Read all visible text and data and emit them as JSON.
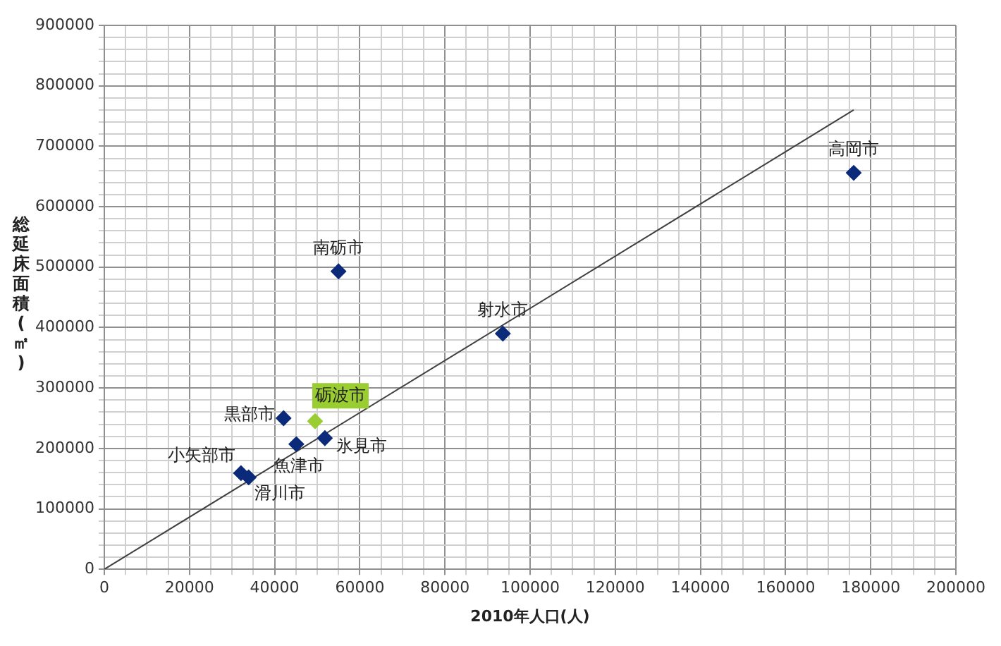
{
  "chart_data": {
    "type": "scatter",
    "xlabel": "2010年人口(人)",
    "ylabel": "総延床面積(㎡)",
    "xlim": [
      0,
      200000
    ],
    "ylim": [
      0,
      900000
    ],
    "xticks": [
      0,
      {
        "value": 5000,
        "label": null
      },
      {
        "value": 10000,
        "label": null
      },
      {
        "value": 15000,
        "label": null
      },
      20000,
      {
        "value": 25000,
        "label": null
      },
      {
        "value": 30000,
        "label": null
      },
      {
        "value": 35000,
        "label": null
      },
      40000,
      {
        "value": 45000,
        "label": null
      },
      {
        "value": 50000,
        "label": null
      },
      {
        "value": 55000,
        "label": null
      },
      60000,
      {
        "value": 65000,
        "label": null
      },
      {
        "value": 70000,
        "label": null
      },
      {
        "value": 75000,
        "label": null
      },
      80000,
      {
        "value": 85000,
        "label": null
      },
      {
        "value": 90000,
        "label": null
      },
      {
        "value": 95000,
        "label": null
      },
      100000,
      {
        "value": 105000,
        "label": null
      },
      {
        "value": 110000,
        "label": null
      },
      {
        "value": 115000,
        "label": null
      },
      120000,
      {
        "value": 125000,
        "label": null
      },
      {
        "value": 130000,
        "label": null
      },
      {
        "value": 135000,
        "label": null
      },
      140000,
      {
        "value": 145000,
        "label": null
      },
      {
        "value": 150000,
        "label": null
      },
      {
        "value": 155000,
        "label": null
      },
      160000,
      {
        "value": 165000,
        "label": null
      },
      {
        "value": 170000,
        "label": null
      },
      {
        "value": 175000,
        "label": null
      },
      180000,
      {
        "value": 185000,
        "label": null
      },
      {
        "value": 190000,
        "label": null
      },
      {
        "value": 195000,
        "label": null
      },
      200000
    ],
    "yticks": [
      0,
      {
        "value": 20000,
        "label": null
      },
      {
        "value": 40000,
        "label": null
      },
      {
        "value": 60000,
        "label": null
      },
      {
        "value": 80000,
        "label": null
      },
      100000,
      {
        "value": 120000,
        "label": null
      },
      {
        "value": 140000,
        "label": null
      },
      {
        "value": 160000,
        "label": null
      },
      {
        "value": 180000,
        "label": null
      },
      200000,
      {
        "value": 220000,
        "label": null
      },
      {
        "value": 240000,
        "label": null
      },
      {
        "value": 260000,
        "label": null
      },
      {
        "value": 280000,
        "label": null
      },
      300000,
      {
        "value": 320000,
        "label": null
      },
      {
        "value": 340000,
        "label": null
      },
      {
        "value": 360000,
        "label": null
      },
      {
        "value": 380000,
        "label": null
      },
      400000,
      {
        "value": 420000,
        "label": null
      },
      {
        "value": 440000,
        "label": null
      },
      {
        "value": 460000,
        "label": null
      },
      {
        "value": 480000,
        "label": null
      },
      500000,
      {
        "value": 520000,
        "label": null
      },
      {
        "value": 540000,
        "label": null
      },
      {
        "value": 560000,
        "label": null
      },
      {
        "value": 580000,
        "label": null
      },
      600000,
      {
        "value": 620000,
        "label": null
      },
      {
        "value": 640000,
        "label": null
      },
      {
        "value": 660000,
        "label": null
      },
      {
        "value": 680000,
        "label": null
      },
      700000,
      {
        "value": 720000,
        "label": null
      },
      {
        "value": 740000,
        "label": null
      },
      {
        "value": 760000,
        "label": null
      },
      {
        "value": 780000,
        "label": null
      },
      800000,
      {
        "value": 820000,
        "label": null
      },
      {
        "value": 840000,
        "label": null
      },
      {
        "value": 860000,
        "label": null
      },
      {
        "value": 880000,
        "label": null
      },
      900000
    ],
    "grid": true,
    "legend": false,
    "marker": "diamond",
    "series": [
      {
        "name": "南砺市",
        "color": "#0c2a7a",
        "x": [
          55000
        ],
        "values": [
          493000
        ]
      },
      {
        "name": "高岡市",
        "color": "#0c2a7a",
        "x": [
          176000
        ],
        "values": [
          656000
        ]
      },
      {
        "name": "射水市",
        "color": "#0c2a7a",
        "x": [
          93600
        ],
        "values": [
          390000
        ]
      },
      {
        "name": "黒部市",
        "color": "#0c2a7a",
        "x": [
          42100
        ],
        "values": [
          250000
        ]
      },
      {
        "name": "砺波市",
        "color": "#9acd32",
        "x": [
          49500
        ],
        "values": [
          245000
        ]
      },
      {
        "name": "魚津市",
        "color": "#0c2a7a",
        "x": [
          45100
        ],
        "values": [
          207000
        ]
      },
      {
        "name": "氷見市",
        "color": "#0c2a7a",
        "x": [
          51800
        ],
        "values": [
          217000
        ]
      },
      {
        "name": "小矢部市",
        "color": "#0c2a7a",
        "x": [
          32100
        ],
        "values": [
          159000
        ]
      },
      {
        "name": "滑川市",
        "color": "#0c2a7a",
        "x": [
          33900
        ],
        "values": [
          152000
        ]
      },
      {
        "type": "line",
        "color": "#404040",
        "marker": "none",
        "x": [
          0,
          176000
        ],
        "values": [
          0,
          760000
        ]
      }
    ]
  }
}
